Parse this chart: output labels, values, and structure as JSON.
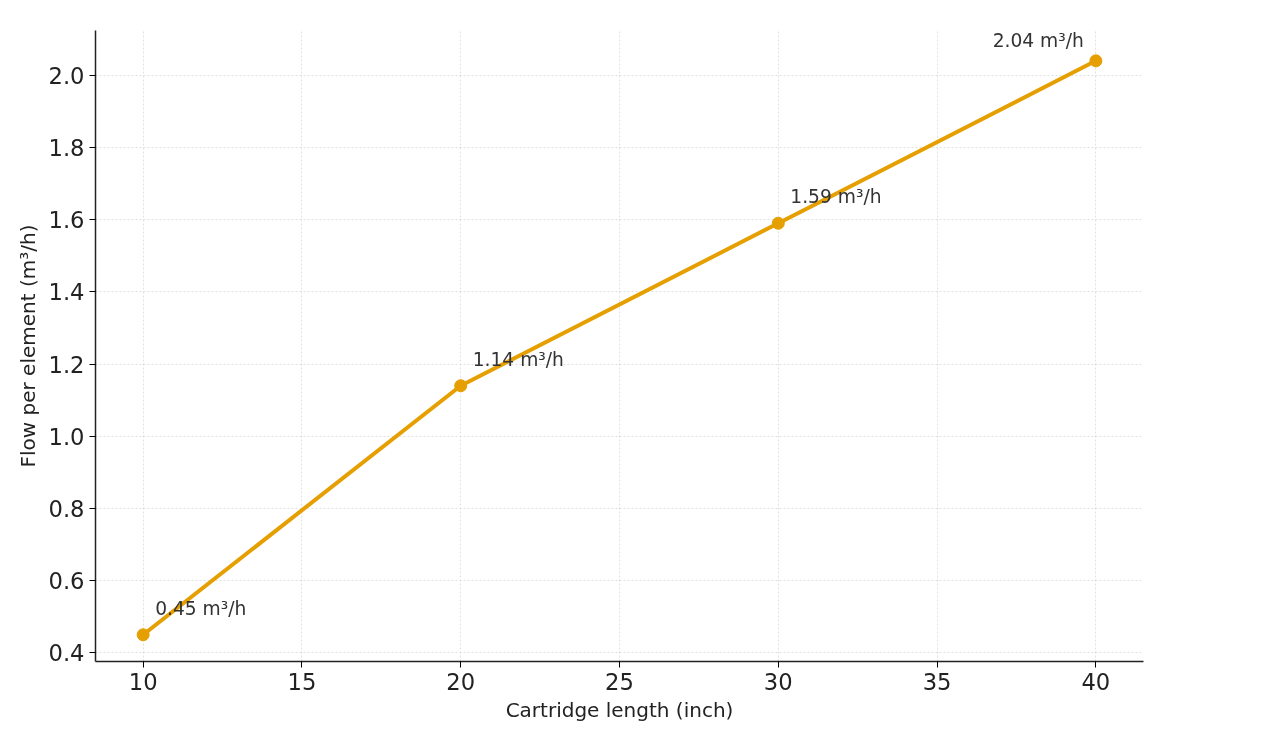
{
  "chart_data": {
    "type": "line",
    "xlabel": "Cartridge length (inch)",
    "ylabel": "Flow per element (m³/h)",
    "x": [
      10,
      20,
      30,
      40
    ],
    "series": [
      {
        "color": "#e69f00",
        "values": [
          0.45,
          1.14,
          1.59,
          2.04
        ],
        "value_labels": [
          "0.45 m³/h",
          "1.14 m³/h",
          "1.59 m³/h",
          "2.04 m³/h"
        ]
      }
    ],
    "xlim": [
      8.5,
      41.5
    ],
    "xticks": [
      10,
      15,
      20,
      25,
      30,
      35,
      40
    ],
    "ylim": [
      0.376,
      2.124
    ],
    "yticks": [
      {
        "value": 0.4,
        "label": "0.4"
      },
      {
        "value": 0.6,
        "label": "0.6"
      },
      {
        "value": 0.8,
        "label": "0.8"
      },
      {
        "value": 1.0,
        "label": "1.0"
      },
      {
        "value": 1.2,
        "label": "1.2"
      },
      {
        "value": 1.4,
        "label": "1.4"
      },
      {
        "value": 1.6,
        "label": "1.6"
      },
      {
        "value": 1.8,
        "label": "1.8"
      },
      {
        "value": 2.0,
        "label": "2.0"
      }
    ],
    "grid": true,
    "marker": "circle",
    "line_style": "solid"
  }
}
